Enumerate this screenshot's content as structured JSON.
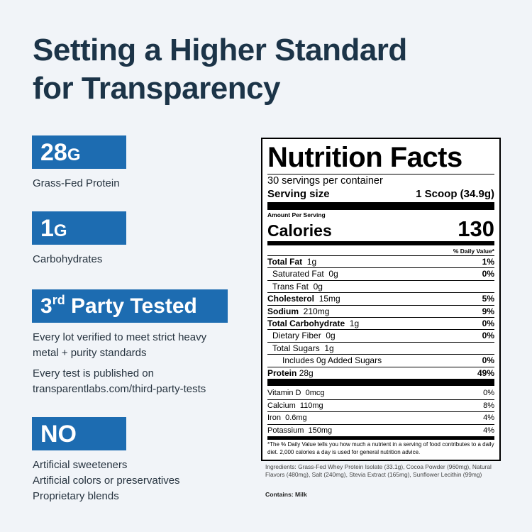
{
  "headline": {
    "line1": "Setting a Higher Standard",
    "line2": "for Transparency"
  },
  "features": {
    "protein": {
      "value": "28",
      "unit": "G",
      "caption": "Grass-Fed Protein"
    },
    "carbs": {
      "value": "1",
      "unit": "G",
      "caption": "Carbohydrates"
    },
    "tested": {
      "prefix": "3",
      "sup": "rd",
      "suffix": " Party Tested",
      "caption1a": "Every lot verified to meet strict heavy",
      "caption1b": "metal + purity standards",
      "caption2a": "Every test is published on",
      "caption2b": "transparentlabs.com/third-party-tests"
    },
    "no": {
      "label": "NO",
      "items": [
        "Artificial sweeteners",
        "Artificial colors or preservatives",
        "Proprietary blends"
      ]
    }
  },
  "colors": {
    "accent": "#1d6cb1",
    "headline": "#1c3448",
    "background": "#f1f4f8"
  },
  "nutrition": {
    "title": "Nutrition Facts",
    "servings": "30 servings per container",
    "serving_size_label": "Serving size",
    "serving_size_value": "1 Scoop (34.9g)",
    "amount_per_serving": "Amount Per Serving",
    "calories_label": "Calories",
    "calories_value": "130",
    "daily_value_header": "% Daily Value*",
    "rows": [
      {
        "label": "Total Fat",
        "amount": "1g",
        "pct": "1%"
      },
      {
        "label": "Saturated Fat",
        "amount": "0g",
        "pct": "0%"
      },
      {
        "label": "Trans Fat",
        "amount": "0g",
        "pct": ""
      },
      {
        "label": "Cholesterol",
        "amount": "15mg",
        "pct": "5%"
      },
      {
        "label": "Sodium",
        "amount": "210mg",
        "pct": "9%"
      },
      {
        "label": "Total Carbohydrate",
        "amount": "1g",
        "pct": "0%"
      },
      {
        "label": "Dietary Fiber",
        "amount": "0g",
        "pct": "0%"
      },
      {
        "label": "Total Sugars",
        "amount": "1g",
        "pct": ""
      },
      {
        "label": "Includes 0g Added Sugars",
        "amount": "",
        "pct": "0%"
      },
      {
        "label": "Protein",
        "amount": "28g",
        "pct": "49%"
      }
    ],
    "vitamins": [
      {
        "label": "Vitamin D",
        "amount": "0mcg",
        "pct": "0%"
      },
      {
        "label": "Calcium",
        "amount": "110mg",
        "pct": "8%"
      },
      {
        "label": "Iron",
        "amount": "0.6mg",
        "pct": "4%"
      },
      {
        "label": "Potassium",
        "amount": "150mg",
        "pct": "4%"
      }
    ],
    "footnote": "*The % Daily Value tells you how much a nutrient in a serving of food contributes to a daily diet. 2,000 calories a day is used for general nutrition advice.",
    "ingredients": "Ingredients: Grass-Fed Whey Protein Isolate (33.1g), Cocoa Powder (960mg), Natural Flavors (480mg), Salt (240mg), Stevia Extract (165mg), Sunflower Lecithin (99mg)",
    "contains": "Contains: Milk"
  }
}
